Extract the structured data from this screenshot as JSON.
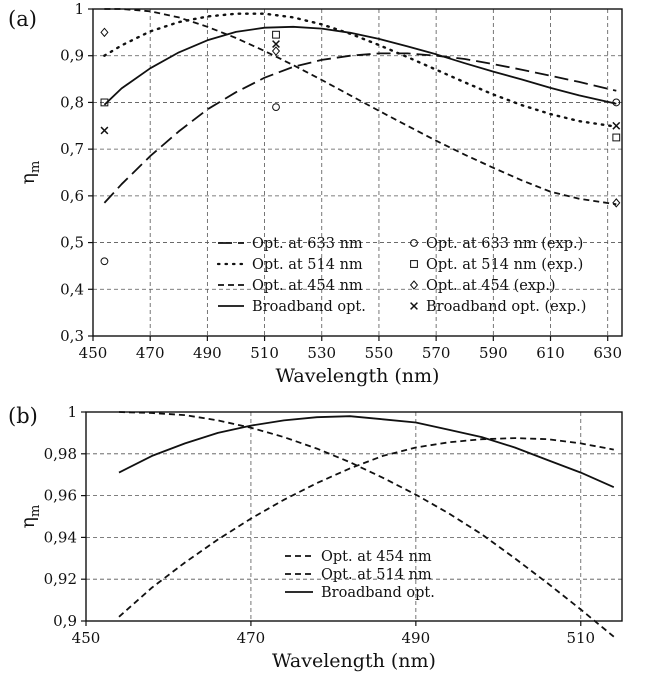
{
  "chart_data": [
    {
      "type": "line",
      "panel_label": "(a)",
      "xlabel": "Wavelength (nm)",
      "ylabel_main": "η",
      "ylabel_sub": "m",
      "xlim": [
        450,
        635
      ],
      "ylim": [
        0.3,
        1.0
      ],
      "x_ticks": [
        450,
        470,
        490,
        510,
        530,
        550,
        570,
        590,
        610,
        630
      ],
      "x_tick_labels": [
        "450",
        "470",
        "490",
        "510",
        "530",
        "550",
        "570",
        "590",
        "610",
        "630"
      ],
      "y_ticks": [
        0.3,
        0.4,
        0.5,
        0.6,
        0.7,
        0.8,
        0.9,
        1.0
      ],
      "y_tick_labels": [
        "0,3",
        "0,4",
        "0,5",
        "0,6",
        "0,7",
        "0,8",
        "0,9",
        "1"
      ],
      "grid": true,
      "legend_placement": "bottom-right",
      "series": [
        {
          "name": "Opt. at 633 nm",
          "style": "longdash",
          "x": [
            454,
            460,
            470,
            480,
            490,
            500,
            510,
            520,
            530,
            540,
            550,
            560,
            570,
            580,
            590,
            600,
            610,
            620,
            633
          ],
          "y": [
            0.585,
            0.625,
            0.685,
            0.738,
            0.785,
            0.822,
            0.853,
            0.876,
            0.891,
            0.9,
            0.905,
            0.905,
            0.9,
            0.893,
            0.882,
            0.87,
            0.857,
            0.844,
            0.825
          ]
        },
        {
          "name": "Opt. at 514 nm",
          "style": "dotted",
          "x": [
            454,
            460,
            470,
            480,
            490,
            500,
            510,
            520,
            530,
            540,
            550,
            560,
            570,
            580,
            590,
            600,
            610,
            620,
            633
          ],
          "y": [
            0.9,
            0.922,
            0.952,
            0.972,
            0.984,
            0.99,
            0.99,
            0.982,
            0.967,
            0.947,
            0.923,
            0.897,
            0.87,
            0.843,
            0.817,
            0.794,
            0.775,
            0.76,
            0.748
          ]
        },
        {
          "name": "Opt. at 454 nm",
          "style": "dashed",
          "x": [
            454,
            460,
            470,
            480,
            490,
            500,
            510,
            520,
            530,
            540,
            550,
            560,
            570,
            580,
            590,
            600,
            610,
            620,
            633
          ],
          "y": [
            1.0,
            1.0,
            0.995,
            0.982,
            0.962,
            0.938,
            0.91,
            0.88,
            0.848,
            0.815,
            0.782,
            0.75,
            0.718,
            0.688,
            0.66,
            0.633,
            0.609,
            0.594,
            0.582
          ]
        },
        {
          "name": "Broadband opt.",
          "style": "solid",
          "x": [
            454,
            460,
            470,
            480,
            490,
            500,
            510,
            520,
            530,
            540,
            550,
            560,
            570,
            580,
            590,
            600,
            610,
            620,
            633
          ],
          "y": [
            0.795,
            0.83,
            0.873,
            0.907,
            0.933,
            0.951,
            0.96,
            0.962,
            0.958,
            0.949,
            0.936,
            0.92,
            0.903,
            0.884,
            0.866,
            0.849,
            0.831,
            0.815,
            0.797
          ]
        }
      ],
      "scatter_series": [
        {
          "name": "Opt. at 633 nm (exp.)",
          "marker": "circle",
          "x": [
            454,
            514,
            633
          ],
          "y": [
            0.46,
            0.79,
            0.8
          ]
        },
        {
          "name": "Opt. at 514 nm (exp.)",
          "marker": "square",
          "x": [
            454,
            514,
            633
          ],
          "y": [
            0.8,
            0.945,
            0.725
          ]
        },
        {
          "name": "Opt. at 454 (exp.)",
          "marker": "diamond",
          "x": [
            454,
            514,
            633
          ],
          "y": [
            0.95,
            0.91,
            0.585
          ]
        },
        {
          "name": "Broadband opt. (exp.)",
          "marker": "cross",
          "x": [
            454,
            514,
            633
          ],
          "y": [
            0.74,
            0.925,
            0.75
          ]
        }
      ]
    },
    {
      "type": "line",
      "panel_label": "(b)",
      "xlabel": "Wavelength (nm)",
      "ylabel_main": "η",
      "ylabel_sub": "m",
      "xlim": [
        450,
        515
      ],
      "ylim": [
        0.9,
        1.0
      ],
      "x_ticks": [
        450,
        470,
        490,
        510
      ],
      "x_tick_labels": [
        "450",
        "470",
        "490",
        "510"
      ],
      "y_ticks": [
        0.9,
        0.92,
        0.94,
        0.96,
        0.98,
        1.0
      ],
      "y_tick_labels": [
        "0,9",
        "0,92",
        "0,94",
        "0,96",
        "0,98",
        "1"
      ],
      "grid": true,
      "legend_placement": "bottom-center",
      "series": [
        {
          "name": "Opt. at 454 nm",
          "style": "dashed",
          "x": [
            454,
            458,
            462,
            466,
            470,
            474,
            478,
            482,
            486,
            490,
            494,
            498,
            502,
            506,
            510,
            514
          ],
          "y": [
            1.0,
            0.9995,
            0.9985,
            0.996,
            0.9925,
            0.988,
            0.9825,
            0.976,
            0.9685,
            0.9605,
            0.9515,
            0.9415,
            0.93,
            0.918,
            0.9055,
            0.8925
          ]
        },
        {
          "name": "Opt. at 514 nm",
          "style": "dashed",
          "x": [
            454,
            458,
            462,
            466,
            470,
            474,
            478,
            482,
            486,
            490,
            494,
            498,
            502,
            506,
            510,
            514
          ],
          "y": [
            0.902,
            0.916,
            0.928,
            0.939,
            0.949,
            0.958,
            0.966,
            0.973,
            0.979,
            0.983,
            0.9855,
            0.987,
            0.9875,
            0.987,
            0.985,
            0.982
          ]
        },
        {
          "name": "Broadband opt.",
          "style": "solid",
          "x": [
            454,
            458,
            462,
            466,
            470,
            474,
            478,
            482,
            486,
            490,
            494,
            498,
            502,
            506,
            510,
            514
          ],
          "y": [
            0.971,
            0.979,
            0.985,
            0.99,
            0.9935,
            0.996,
            0.9975,
            0.998,
            0.9965,
            0.995,
            0.9915,
            0.988,
            0.983,
            0.977,
            0.971,
            0.964
          ]
        }
      ]
    }
  ]
}
